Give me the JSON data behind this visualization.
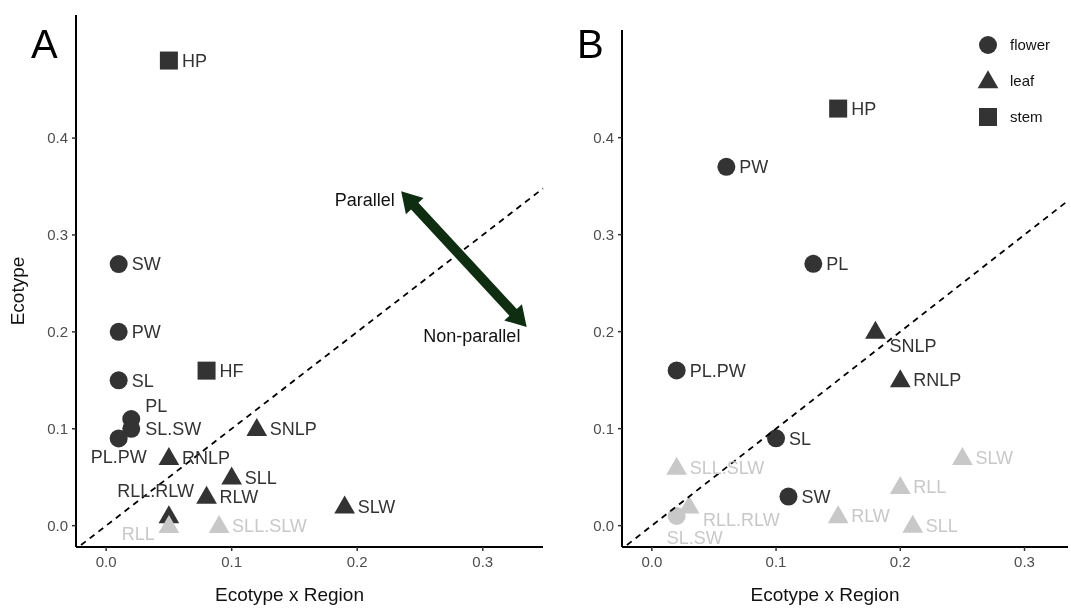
{
  "chart_data": [
    {
      "type": "scatter",
      "title": "A",
      "xlabel": "Ecotype x Region",
      "ylabel": "Ecotype",
      "xlim": [
        -0.024,
        0.348
      ],
      "ylim": [
        -0.022,
        0.527
      ],
      "xticks": [
        {
          "value": 0,
          "label": "0.0"
        },
        0.1,
        0.2,
        0.3
      ],
      "yticks": [
        {
          "value": 0,
          "label": "0.0"
        },
        0.1,
        0.2,
        0.3,
        0.4
      ],
      "grid": false,
      "legend": false,
      "series": [
        {
          "marker": "circle",
          "color": "#333333",
          "x": [
            0.01,
            0.01,
            0.01,
            0.02,
            0.02,
            0.01
          ],
          "values": [
            0.27,
            0.2,
            0.15,
            0.11,
            0.1,
            0.09
          ]
        },
        {
          "marker": "triangle",
          "color": "#333333",
          "x": [
            0.05,
            0.12,
            0.1,
            0.08,
            0.19,
            0.05
          ],
          "values": [
            0.07,
            0.1,
            0.05,
            0.03,
            0.02,
            0.01
          ]
        },
        {
          "marker": "triangle",
          "color": "#c8c8c8",
          "x": [
            0.05,
            0.09
          ],
          "values": [
            0,
            0
          ]
        },
        {
          "marker": "square",
          "color": "#333333",
          "x": [
            0.05,
            0.08
          ],
          "values": [
            0.48,
            0.16
          ]
        },
        {
          "type": "line",
          "marker": "none",
          "line_style": "dashed",
          "color": "#000000",
          "x": [
            -0.02,
            0.348
          ],
          "values": [
            -0.02,
            0.348
          ]
        }
      ],
      "annotations": [
        {
          "text": "HP",
          "x": 0.05,
          "y": 0.48
        },
        {
          "text": "SW",
          "x": 0.01,
          "y": 0.27
        },
        {
          "text": "PW",
          "x": 0.01,
          "y": 0.2
        },
        {
          "text": "SL",
          "x": 0.01,
          "y": 0.15
        },
        {
          "text": "HF",
          "x": 0.08,
          "y": 0.16
        },
        {
          "text": "PL",
          "x": 0.02,
          "y": 0.11
        },
        {
          "text": "SL.SW",
          "x": 0.02,
          "y": 0.1
        },
        {
          "text": "PL.PW",
          "x": 0.01,
          "y": 0.09
        },
        {
          "text": "RNLP",
          "x": 0.05,
          "y": 0.07
        },
        {
          "text": "SNLP",
          "x": 0.12,
          "y": 0.1
        },
        {
          "text": "SLL",
          "x": 0.1,
          "y": 0.05
        },
        {
          "text": "RLW",
          "x": 0.08,
          "y": 0.03
        },
        {
          "text": "SLW",
          "x": 0.19,
          "y": 0.02
        },
        {
          "text": "RLL.RLW",
          "x": 0.05,
          "y": 0.01
        },
        {
          "text": "RLL",
          "x": 0.05,
          "y": 0
        },
        {
          "text": "SLL.SLW",
          "x": 0.09,
          "y": 0
        },
        "Parallel",
        "Non-parallel"
      ]
    },
    {
      "type": "scatter",
      "title": "B",
      "xlabel": "Ecotype x Region",
      "xlim": [
        -0.024,
        0.335
      ],
      "ylim": [
        -0.022,
        0.511
      ],
      "xticks": [
        {
          "value": 0,
          "label": "0.0"
        },
        0.1,
        0.2,
        0.3
      ],
      "yticks": [
        {
          "value": 0,
          "label": "0.0"
        },
        0.1,
        0.2,
        0.3,
        0.4
      ],
      "grid": false,
      "legend": "top right",
      "series": [
        {
          "name": "flower",
          "marker": "circle",
          "color": "#333333",
          "x": [
            0.06,
            0.13,
            0.02,
            0.1,
            0.11
          ],
          "values": [
            0.37,
            0.27,
            0.16,
            0.09,
            0.03
          ]
        },
        {
          "name": "leaf",
          "marker": "triangle",
          "color": "#333333",
          "x": [
            0.18,
            0.2
          ],
          "values": [
            0.2,
            0.15
          ]
        },
        {
          "name": "stem",
          "marker": "square",
          "color": "#333333",
          "x": [
            0.15
          ],
          "values": [
            0.43
          ]
        },
        {
          "marker": "circle",
          "color": "#c8c8c8",
          "x": [
            0.02
          ],
          "values": [
            0.01
          ]
        },
        {
          "marker": "triangle",
          "color": "#c8c8c8",
          "x": [
            0.02,
            0.03,
            0.15,
            0.2,
            0.21,
            0.25
          ],
          "values": [
            0.06,
            0.02,
            0.01,
            0.04,
            0,
            0.07
          ]
        },
        {
          "type": "line",
          "marker": "none",
          "line_style": "dashed",
          "color": "#000000",
          "x": [
            -0.02,
            0.335
          ],
          "values": [
            -0.02,
            0.335
          ]
        }
      ],
      "annotations": [
        {
          "text": "HP",
          "x": 0.15,
          "y": 0.43
        },
        {
          "text": "PW",
          "x": 0.06,
          "y": 0.37
        },
        {
          "text": "PL",
          "x": 0.13,
          "y": 0.27
        },
        {
          "text": "SNLP",
          "x": 0.18,
          "y": 0.2
        },
        {
          "text": "RNLP",
          "x": 0.2,
          "y": 0.15
        },
        {
          "text": "PL.PW",
          "x": 0.02,
          "y": 0.16
        },
        {
          "text": "SL",
          "x": 0.1,
          "y": 0.09
        },
        {
          "text": "SW",
          "x": 0.11,
          "y": 0.03
        },
        {
          "text": "SLL.SLW",
          "x": 0.02,
          "y": 0.06
        },
        {
          "text": "RLL.RLW",
          "x": 0.03,
          "y": 0.02
        },
        {
          "text": "SL.SW",
          "x": 0.02,
          "y": 0.01
        },
        {
          "text": "RLW",
          "x": 0.15,
          "y": 0.01
        },
        {
          "text": "RLL",
          "x": 0.2,
          "y": 0.04
        },
        {
          "text": "SLL",
          "x": 0.21,
          "y": 0
        },
        {
          "text": "SLW",
          "x": 0.25,
          "y": 0.07
        }
      ]
    }
  ]
}
